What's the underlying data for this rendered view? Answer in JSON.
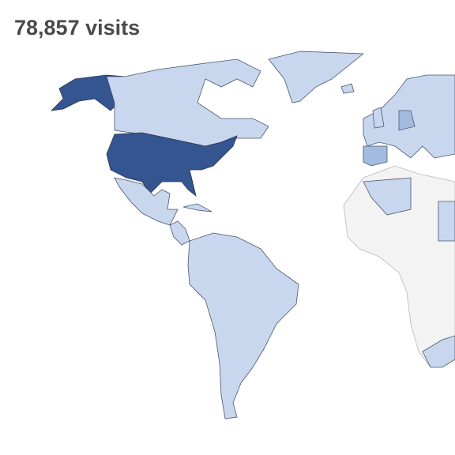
{
  "header": {
    "title": "78,857 visits"
  }
}
